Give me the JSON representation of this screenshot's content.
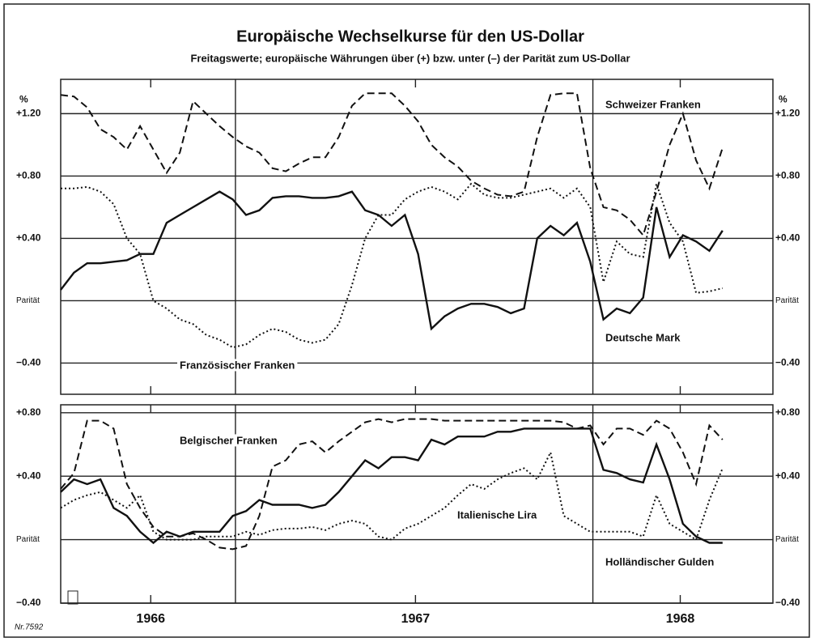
{
  "title": "Europäische Wechselkurse für den US-Dollar",
  "subtitle": "Freitagswerte; europäische Währungen über (+) bzw. unter (–) der Parität zum US-Dollar",
  "footnote": "Nr.7592",
  "chart_data": [
    {
      "type": "line",
      "ylabel": "%",
      "x": [
        1965.66,
        1965.71,
        1965.76,
        1965.81,
        1965.86,
        1965.91,
        1965.96,
        1966.01,
        1966.06,
        1966.11,
        1966.16,
        1966.21,
        1966.26,
        1966.31,
        1966.36,
        1966.41,
        1966.46,
        1966.51,
        1966.56,
        1966.61,
        1966.66,
        1966.71,
        1966.76,
        1966.81,
        1966.86,
        1966.91,
        1966.96,
        1967.01,
        1967.06,
        1967.11,
        1967.16,
        1967.21,
        1967.26,
        1967.31,
        1967.36,
        1967.41,
        1967.46,
        1967.51,
        1967.56,
        1967.61,
        1967.66,
        1967.71,
        1967.76,
        1967.81,
        1967.86,
        1967.91,
        1967.96,
        1968.01,
        1968.06,
        1968.11,
        1968.16
      ],
      "xlim": [
        1965.66,
        1968.35
      ],
      "xticks": [
        1966,
        1967,
        1968
      ],
      "vlines": [
        1966.32,
        1967.67
      ],
      "ylim": [
        -0.6,
        1.42
      ],
      "yticks": [
        {
          "value": -0.4,
          "label": "−0.40"
        },
        {
          "value": 0,
          "label": "Parität"
        },
        {
          "value": 0.4,
          "label": "+0.40"
        },
        {
          "value": 0.8,
          "label": "+0.80"
        },
        {
          "value": 1.2,
          "label": "+1.20"
        }
      ],
      "grid": true,
      "series": [
        {
          "name": "Schweizer Franken",
          "color": "#111111",
          "dash": "dashed",
          "values": [
            1.32,
            1.31,
            1.24,
            1.1,
            1.05,
            0.97,
            1.12,
            0.97,
            0.82,
            0.95,
            1.28,
            1.2,
            1.12,
            1.05,
            0.99,
            0.95,
            0.85,
            0.83,
            0.88,
            0.92,
            0.92,
            1.05,
            1.25,
            1.33,
            1.33,
            1.33,
            1.25,
            1.15,
            1.0,
            0.92,
            0.86,
            0.77,
            0.72,
            0.68,
            0.67,
            0.7,
            1.05,
            1.32,
            1.33,
            1.33,
            0.85,
            0.6,
            0.58,
            0.52,
            0.42,
            0.7,
            1.0,
            1.2,
            0.9,
            0.72,
            0.98
          ]
        },
        {
          "name": "Deutsche Mark",
          "color": "#111111",
          "dash": "solid",
          "values": [
            0.07,
            0.18,
            0.24,
            0.24,
            0.25,
            0.26,
            0.3,
            0.3,
            0.5,
            0.55,
            0.6,
            0.65,
            0.7,
            0.65,
            0.55,
            0.58,
            0.66,
            0.67,
            0.67,
            0.66,
            0.66,
            0.67,
            0.7,
            0.58,
            0.55,
            0.48,
            0.55,
            0.3,
            -0.18,
            -0.1,
            -0.05,
            -0.02,
            -0.02,
            -0.04,
            -0.08,
            -0.05,
            0.4,
            0.48,
            0.42,
            0.5,
            0.25,
            -0.12,
            -0.05,
            -0.08,
            0.02,
            0.6,
            0.28,
            0.42,
            0.38,
            0.32,
            0.45
          ]
        },
        {
          "name": "Französischer Franken",
          "color": "#111111",
          "dash": "dotted",
          "values": [
            0.72,
            0.72,
            0.73,
            0.7,
            0.62,
            0.4,
            0.3,
            0.0,
            -0.05,
            -0.12,
            -0.15,
            -0.22,
            -0.25,
            -0.3,
            -0.28,
            -0.22,
            -0.18,
            -0.2,
            -0.25,
            -0.27,
            -0.25,
            -0.15,
            0.1,
            0.4,
            0.55,
            0.55,
            0.65,
            0.7,
            0.73,
            0.7,
            0.65,
            0.75,
            0.68,
            0.66,
            0.66,
            0.68,
            0.7,
            0.72,
            0.66,
            0.72,
            0.6,
            0.12,
            0.38,
            0.3,
            0.28,
            0.75,
            0.5,
            0.38,
            0.05,
            0.06,
            0.08
          ]
        }
      ]
    },
    {
      "type": "line",
      "x": [
        1965.66,
        1965.71,
        1965.76,
        1965.81,
        1965.86,
        1965.91,
        1965.96,
        1966.01,
        1966.06,
        1966.11,
        1966.16,
        1966.21,
        1966.26,
        1966.31,
        1966.36,
        1966.41,
        1966.46,
        1966.51,
        1966.56,
        1966.61,
        1966.66,
        1966.71,
        1966.76,
        1966.81,
        1966.86,
        1966.91,
        1966.96,
        1967.01,
        1967.06,
        1967.11,
        1967.16,
        1967.21,
        1967.26,
        1967.31,
        1967.36,
        1967.41,
        1967.46,
        1967.51,
        1967.56,
        1967.61,
        1967.66,
        1967.71,
        1967.76,
        1967.81,
        1967.86,
        1967.91,
        1967.96,
        1968.01,
        1968.06,
        1968.11,
        1968.16
      ],
      "xlim": [
        1965.66,
        1968.35
      ],
      "xticks": [
        1966,
        1967,
        1968
      ],
      "vlines": [
        1966.32,
        1967.67
      ],
      "ylim": [
        -0.4,
        0.85
      ],
      "yticks": [
        {
          "value": -0.4,
          "label": "−0.40"
        },
        {
          "value": 0,
          "label": "Parität"
        },
        {
          "value": 0.4,
          "label": "+0.40"
        },
        {
          "value": 0.8,
          "label": "+0.80"
        }
      ],
      "grid": true,
      "series": [
        {
          "name": "Belgischer Franken",
          "color": "#111111",
          "dash": "dashed",
          "values": [
            0.32,
            0.42,
            0.75,
            0.75,
            0.7,
            0.35,
            0.2,
            0.08,
            0.02,
            0.02,
            0.04,
            0.0,
            -0.05,
            -0.06,
            -0.04,
            0.15,
            0.46,
            0.5,
            0.6,
            0.62,
            0.55,
            0.62,
            0.68,
            0.74,
            0.76,
            0.74,
            0.76,
            0.76,
            0.76,
            0.75,
            0.75,
            0.75,
            0.75,
            0.75,
            0.75,
            0.75,
            0.75,
            0.75,
            0.74,
            0.7,
            0.72,
            0.6,
            0.7,
            0.7,
            0.66,
            0.75,
            0.7,
            0.55,
            0.35,
            0.72,
            0.63
          ]
        },
        {
          "name": "Italienische Lira",
          "color": "#111111",
          "dash": "dotted",
          "values": [
            0.2,
            0.25,
            0.28,
            0.3,
            0.25,
            0.2,
            0.28,
            0.05,
            0.0,
            0.0,
            0.0,
            0.02,
            0.02,
            0.02,
            0.05,
            0.03,
            0.06,
            0.07,
            0.07,
            0.08,
            0.06,
            0.1,
            0.12,
            0.1,
            0.02,
            0.0,
            0.07,
            0.1,
            0.15,
            0.2,
            0.28,
            0.35,
            0.32,
            0.38,
            0.42,
            0.45,
            0.38,
            0.55,
            0.15,
            0.1,
            0.05,
            0.05,
            0.05,
            0.05,
            0.02,
            0.28,
            0.1,
            0.05,
            0.0,
            0.25,
            0.45
          ]
        },
        {
          "name": "Holländischer Gulden",
          "color": "#111111",
          "dash": "solid",
          "values": [
            0.3,
            0.38,
            0.35,
            0.38,
            0.2,
            0.15,
            0.05,
            -0.02,
            0.05,
            0.02,
            0.05,
            0.05,
            0.05,
            0.15,
            0.18,
            0.25,
            0.22,
            0.22,
            0.22,
            0.2,
            0.22,
            0.3,
            0.4,
            0.5,
            0.45,
            0.52,
            0.52,
            0.5,
            0.63,
            0.6,
            0.65,
            0.65,
            0.65,
            0.68,
            0.68,
            0.7,
            0.7,
            0.7,
            0.7,
            0.7,
            0.7,
            0.44,
            0.42,
            0.38,
            0.36,
            0.6,
            0.38,
            0.1,
            0.02,
            -0.02,
            -0.02
          ]
        }
      ]
    }
  ]
}
